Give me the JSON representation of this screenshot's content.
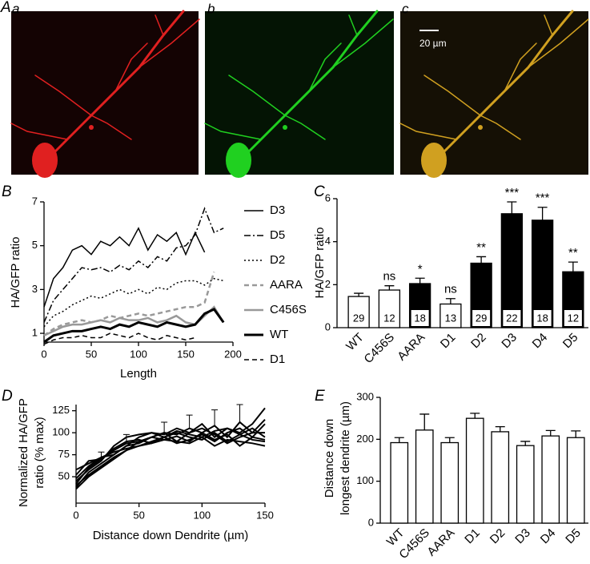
{
  "figure_a": {
    "panel": "A",
    "images": [
      {
        "label": "a"
      },
      {
        "label": "b"
      },
      {
        "label": "c"
      }
    ],
    "scale_bar": "20 µm"
  },
  "chart_data": [
    {
      "type": "line",
      "panel": "B",
      "xlabel": "Length",
      "ylabel": "HA/GFP ratio",
      "xlim": [
        0,
        200
      ],
      "xticks": [
        0,
        50,
        100,
        150,
        200
      ],
      "ylim": [
        0.6,
        7
      ],
      "yticks": [
        1,
        3,
        5,
        7
      ],
      "legend": "right",
      "x": [
        0,
        10,
        20,
        30,
        40,
        50,
        60,
        70,
        80,
        90,
        100,
        110,
        120,
        130,
        140,
        150,
        160,
        170,
        180,
        190
      ],
      "series": [
        {
          "name": "D3",
          "color": "#000",
          "dash": "solid",
          "width": 1.5,
          "values": [
            2.2,
            3.5,
            4.0,
            4.8,
            5.0,
            4.6,
            5.2,
            5.0,
            5.4,
            5.0,
            5.8,
            4.8,
            5.5,
            5.2,
            5.6,
            4.6,
            5.6,
            4.7,
            null,
            null
          ]
        },
        {
          "name": "D5",
          "color": "#000",
          "dash": "dashdot",
          "width": 1.5,
          "values": [
            1.5,
            2.5,
            3.0,
            3.5,
            4.0,
            3.9,
            4.0,
            3.8,
            4.1,
            3.9,
            4.3,
            4.0,
            4.5,
            4.3,
            4.9,
            5.0,
            5.5,
            6.7,
            5.6,
            5.8
          ]
        },
        {
          "name": "D2",
          "color": "#000",
          "dash": "dotted",
          "width": 1.5,
          "values": [
            1.3,
            1.8,
            2.0,
            2.3,
            2.5,
            2.7,
            2.6,
            2.8,
            3.0,
            2.8,
            3.0,
            2.8,
            3.1,
            3.0,
            3.3,
            3.4,
            3.4,
            3.2,
            3.5,
            3.4
          ]
        },
        {
          "name": "AARA",
          "color": "#999",
          "dash": "dashed",
          "width": 2.5,
          "values": [
            0.9,
            1.2,
            1.4,
            1.5,
            1.6,
            1.5,
            1.6,
            1.8,
            1.7,
            1.8,
            1.9,
            1.8,
            1.9,
            2.0,
            2.1,
            2.2,
            2.2,
            2.4,
            3.8,
            null
          ]
        },
        {
          "name": "C456S",
          "color": "#999",
          "dash": "solid",
          "width": 2.5,
          "values": [
            0.9,
            1.1,
            1.3,
            1.4,
            1.4,
            1.5,
            1.6,
            1.5,
            1.7,
            1.6,
            1.6,
            1.7,
            1.5,
            1.6,
            1.8,
            1.5,
            1.4,
            1.8,
            2.2,
            1.5
          ]
        },
        {
          "name": "WT",
          "color": "#000",
          "dash": "solid",
          "width": 3,
          "values": [
            0.6,
            0.9,
            1.0,
            1.1,
            1.1,
            1.2,
            1.3,
            1.2,
            1.4,
            1.3,
            1.5,
            1.4,
            1.3,
            1.5,
            1.4,
            1.3,
            1.4,
            1.9,
            2.1,
            1.5
          ]
        },
        {
          "name": "D1",
          "color": "#000",
          "dash": "dashed",
          "width": 1.5,
          "values": [
            0.5,
            0.7,
            0.8,
            0.8,
            0.9,
            0.8,
            0.8,
            1.0,
            0.9,
            0.8,
            1.0,
            0.8,
            0.7,
            0.9,
            0.8,
            0.7,
            0.8,
            null,
            null,
            null
          ]
        }
      ]
    },
    {
      "type": "bar",
      "panel": "C",
      "ylabel": "HA/GFP ratio",
      "ylim": [
        0,
        6
      ],
      "yticks": [
        0,
        2,
        4,
        6
      ],
      "categories": [
        "WT",
        "C456S",
        "AARA",
        "D1",
        "D2",
        "D3",
        "D4",
        "D5"
      ],
      "values": [
        1.45,
        1.75,
        2.05,
        1.1,
        3.0,
        5.3,
        5.0,
        2.6
      ],
      "errors": [
        0.15,
        0.2,
        0.25,
        0.25,
        0.3,
        0.55,
        0.6,
        0.45
      ],
      "colors": [
        "#fff",
        "#fff",
        "#000",
        "#fff",
        "#000",
        "#000",
        "#000",
        "#000"
      ],
      "n": [
        29,
        12,
        18,
        13,
        29,
        22,
        18,
        12
      ],
      "significance": [
        null,
        "ns",
        "*",
        "ns",
        "**",
        "***",
        "***",
        "**"
      ]
    },
    {
      "type": "line",
      "panel": "D",
      "xlabel": "Distance down Dendrite (µm)",
      "ylabel": [
        "Normalized HA/GFP",
        "ratio (% max)"
      ],
      "xlim": [
        0,
        150
      ],
      "xticks": [
        0,
        50,
        100,
        150
      ],
      "ylim": [
        20,
        132
      ],
      "yticks": [
        50,
        75,
        100,
        125
      ],
      "x": [
        0,
        10,
        20,
        30,
        40,
        50,
        60,
        70,
        80,
        90,
        100,
        110,
        120,
        130,
        140,
        150
      ],
      "series": [
        {
          "color": "#000",
          "dash": "solid",
          "width": 2,
          "values": [
            38,
            55,
            65,
            75,
            85,
            95,
            100,
            98,
            105,
            100,
            110,
            95,
            105,
            100,
            110,
            128
          ]
        },
        {
          "color": "#000",
          "dash": "solid",
          "width": 2,
          "values": [
            42,
            60,
            70,
            80,
            88,
            90,
            95,
            100,
            98,
            105,
            100,
            108,
            95,
            112,
            100,
            115
          ],
          "errors": [
            null,
            null,
            8,
            null,
            10,
            null,
            null,
            12,
            null,
            15,
            null,
            18,
            null,
            20,
            null,
            null
          ]
        },
        {
          "color": "#000",
          "dash": "solid",
          "width": 2,
          "values": [
            48,
            62,
            72,
            78,
            82,
            85,
            90,
            95,
            88,
            92,
            98,
            90,
            100,
            105,
            95,
            110
          ]
        },
        {
          "color": "#000",
          "dash": "solid",
          "width": 2,
          "values": [
            52,
            68,
            70,
            82,
            90,
            92,
            88,
            95,
            100,
            95,
            92,
            100,
            90,
            98,
            105,
            95
          ]
        },
        {
          "color": "#000",
          "dash": "solid",
          "width": 2,
          "values": [
            36,
            50,
            60,
            70,
            80,
            85,
            88,
            92,
            90,
            88,
            95,
            85,
            92,
            90,
            88,
            85
          ]
        },
        {
          "color": "#000",
          "dash": "solid",
          "width": 2,
          "values": [
            58,
            65,
            72,
            75,
            85,
            88,
            95,
            100,
            90,
            100,
            105,
            98,
            88,
            95,
            100,
            100
          ]
        },
        {
          "color": "#000",
          "dash": "solid",
          "width": 2,
          "values": [
            45,
            58,
            68,
            85,
            95,
            98,
            100,
            95,
            102,
            98,
            95,
            102,
            105,
            98,
            92,
            90
          ]
        },
        {
          "color": "#000",
          "dash": "solid",
          "width": 2,
          "values": [
            40,
            52,
            62,
            72,
            80,
            90,
            95,
            92,
            96,
            90,
            100,
            92,
            98,
            85,
            95,
            92
          ]
        }
      ]
    },
    {
      "type": "bar",
      "panel": "E",
      "ylabel": [
        "Distance down",
        "longest dendrite (µm)"
      ],
      "ylim": [
        0,
        300
      ],
      "yticks": [
        0,
        100,
        200,
        300
      ],
      "categories": [
        "WT",
        "C456S",
        "AARA",
        "D1",
        "D2",
        "D3",
        "D4",
        "D5"
      ],
      "values": [
        192,
        222,
        192,
        250,
        218,
        185,
        208,
        204
      ],
      "errors": [
        12,
        38,
        12,
        12,
        12,
        10,
        13,
        16
      ],
      "colors": [
        "#fff",
        "#fff",
        "#fff",
        "#fff",
        "#fff",
        "#fff",
        "#fff",
        "#fff"
      ]
    }
  ]
}
